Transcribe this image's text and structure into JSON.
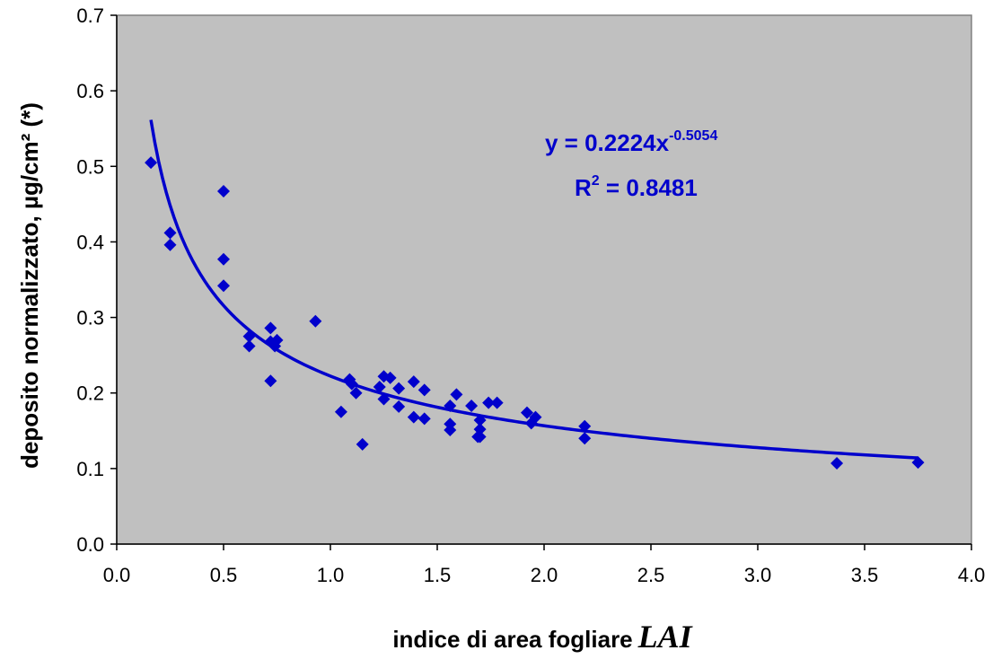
{
  "chart_data": {
    "type": "scatter",
    "xlabel": "indice di area fogliare",
    "xlabel_symbol": "LAI",
    "ylabel": "deposito normalizzato, µg/cm² (*)",
    "xlim": [
      0.0,
      4.0
    ],
    "ylim": [
      0.0,
      0.7
    ],
    "x_ticks": [
      "0.0",
      "0.5",
      "1.0",
      "1.5",
      "2.0",
      "2.5",
      "3.0",
      "3.5",
      "4.0"
    ],
    "y_ticks": [
      "0.0",
      "0.1",
      "0.2",
      "0.3",
      "0.4",
      "0.5",
      "0.6",
      "0.7"
    ],
    "grid": false,
    "plot_background": "#c0c0c0",
    "marker_color": "#0000cc",
    "series": [
      {
        "marker": "diamond",
        "points": [
          [
            0.16,
            0.505
          ],
          [
            0.25,
            0.412
          ],
          [
            0.25,
            0.396
          ],
          [
            0.5,
            0.467
          ],
          [
            0.5,
            0.377
          ],
          [
            0.5,
            0.342
          ],
          [
            0.62,
            0.275
          ],
          [
            0.62,
            0.262
          ],
          [
            0.72,
            0.286
          ],
          [
            0.72,
            0.268
          ],
          [
            0.72,
            0.216
          ],
          [
            0.74,
            0.262
          ],
          [
            0.75,
            0.27
          ],
          [
            0.93,
            0.295
          ],
          [
            1.05,
            0.175
          ],
          [
            1.09,
            0.218
          ],
          [
            1.1,
            0.212
          ],
          [
            1.12,
            0.2
          ],
          [
            1.15,
            0.132
          ],
          [
            1.23,
            0.208
          ],
          [
            1.25,
            0.222
          ],
          [
            1.25,
            0.192
          ],
          [
            1.28,
            0.22
          ],
          [
            1.32,
            0.206
          ],
          [
            1.32,
            0.182
          ],
          [
            1.39,
            0.215
          ],
          [
            1.39,
            0.168
          ],
          [
            1.44,
            0.204
          ],
          [
            1.44,
            0.166
          ],
          [
            1.56,
            0.183
          ],
          [
            1.56,
            0.159
          ],
          [
            1.56,
            0.151
          ],
          [
            1.59,
            0.198
          ],
          [
            1.66,
            0.183
          ],
          [
            1.69,
            0.142
          ],
          [
            1.7,
            0.164
          ],
          [
            1.7,
            0.152
          ],
          [
            1.7,
            0.142
          ],
          [
            1.74,
            0.187
          ],
          [
            1.78,
            0.187
          ],
          [
            1.92,
            0.174
          ],
          [
            1.94,
            0.16
          ],
          [
            1.96,
            0.168
          ],
          [
            2.19,
            0.156
          ],
          [
            2.19,
            0.14
          ],
          [
            3.37,
            0.107
          ],
          [
            3.75,
            0.108
          ]
        ]
      }
    ],
    "trendline": {
      "type": "power",
      "coefficient": 0.2224,
      "exponent": -0.5054,
      "x_range": [
        0.16,
        3.75
      ],
      "color": "#0000cc"
    },
    "annotations": {
      "equation_prefix": "y = 0.2224x",
      "equation_exponent": "-0.5054",
      "r2_prefix": "R",
      "r2_exponent": "2",
      "r2_value": " = 0.8481"
    }
  }
}
